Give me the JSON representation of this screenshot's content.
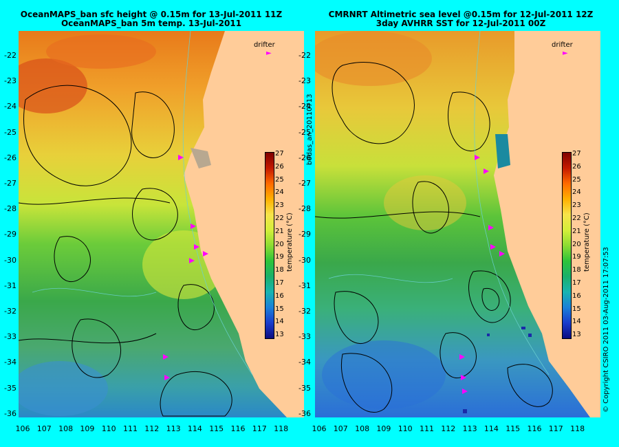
{
  "left_panel": {
    "title_line1": "OceanMAPS_ban sfc height @ 0.15m for 13-Jul-2011 11Z",
    "title_line2": "OceanMAPS_ban 5m temp. 13-Jul-2011"
  },
  "right_panel": {
    "title_line1": "CMRNRT Altimetric sea level  @0.15m  for 12-Jul-2011 12Z",
    "title_line2": "3day AVHRR SST for 12-Jul-2011 00Z"
  },
  "latitudes": [
    "-22",
    "-23",
    "-24",
    "-25",
    "-26",
    "-27",
    "-28",
    "-29",
    "-30",
    "-31",
    "-32",
    "-33",
    "-34",
    "-35",
    "-36"
  ],
  "longitudes": [
    "106",
    "107",
    "108",
    "109",
    "110",
    "111",
    "112",
    "113",
    "114",
    "115",
    "116",
    "117",
    "118"
  ],
  "drifter_label": "drifter",
  "colorbar": {
    "ticks": [
      "27",
      "26",
      "25",
      "24",
      "23",
      "22",
      "21",
      "20",
      "19",
      "18",
      "17",
      "16",
      "15",
      "14",
      "13"
    ],
    "label": "temperature (°C)"
  },
  "side_texts": {
    "left_vertical": "bodas_an_20110713",
    "right_vertical": "© Copyright CSIRO 2011  03-Aug-2011 17:07:53"
  },
  "colors": {
    "background": "#00ffff",
    "land": "#ffcc99",
    "drifter": "#ff00ff",
    "contour": "#000000",
    "bathymetry": "#6ad0d0"
  }
}
